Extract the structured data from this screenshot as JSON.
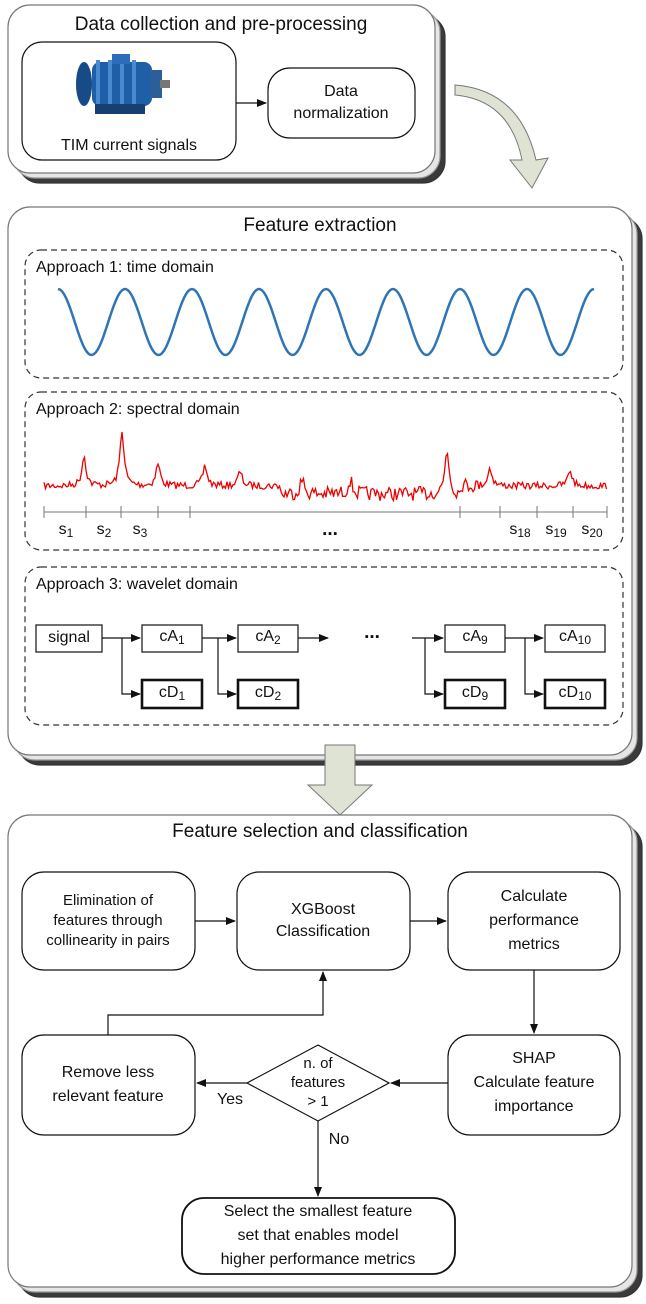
{
  "panel1": {
    "title": "Data collection and pre-processing",
    "motor_label": "TIM current signals",
    "normalization": [
      "Data",
      "normalization"
    ]
  },
  "panel2": {
    "title": "Feature extraction",
    "approach1": "Approach 1: time domain",
    "approach2": "Approach 2: spectral domain",
    "segments": [
      {
        "base": "s",
        "sub": "1"
      },
      {
        "base": "s",
        "sub": "2"
      },
      {
        "base": "s",
        "sub": "3"
      },
      {
        "base": "s",
        "sub": "18"
      },
      {
        "base": "s",
        "sub": "19"
      },
      {
        "base": "s",
        "sub": "20"
      }
    ],
    "ellipsis": "...",
    "approach3": "Approach 3: wavelet domain",
    "signal": "signal",
    "approx": [
      {
        "base": "cA",
        "sub": "1"
      },
      {
        "base": "cA",
        "sub": "2"
      },
      {
        "base": "cA",
        "sub": "9"
      },
      {
        "base": "cA",
        "sub": "10"
      }
    ],
    "detail": [
      {
        "base": "cD",
        "sub": "1"
      },
      {
        "base": "cD",
        "sub": "2"
      },
      {
        "base": "cD",
        "sub": "9"
      },
      {
        "base": "cD",
        "sub": "10"
      }
    ],
    "wavelet_ellipsis": "..."
  },
  "panel3": {
    "title": "Feature selection and classification",
    "elimination": [
      "Elimination of",
      "features through",
      "collinearity in pairs"
    ],
    "xgboost": [
      "XGBoost",
      "Classification"
    ],
    "metrics": [
      "Calculate",
      "performance",
      "metrics"
    ],
    "shap": [
      "SHAP",
      "Calculate feature",
      "importance"
    ],
    "decision": [
      "n. of",
      "features",
      "> 1"
    ],
    "remove": [
      "Remove less",
      "relevant feature"
    ],
    "yes": "Yes",
    "no": "No",
    "select": [
      "Select the smallest feature",
      "set that enables model",
      "higher performance metrics"
    ]
  }
}
